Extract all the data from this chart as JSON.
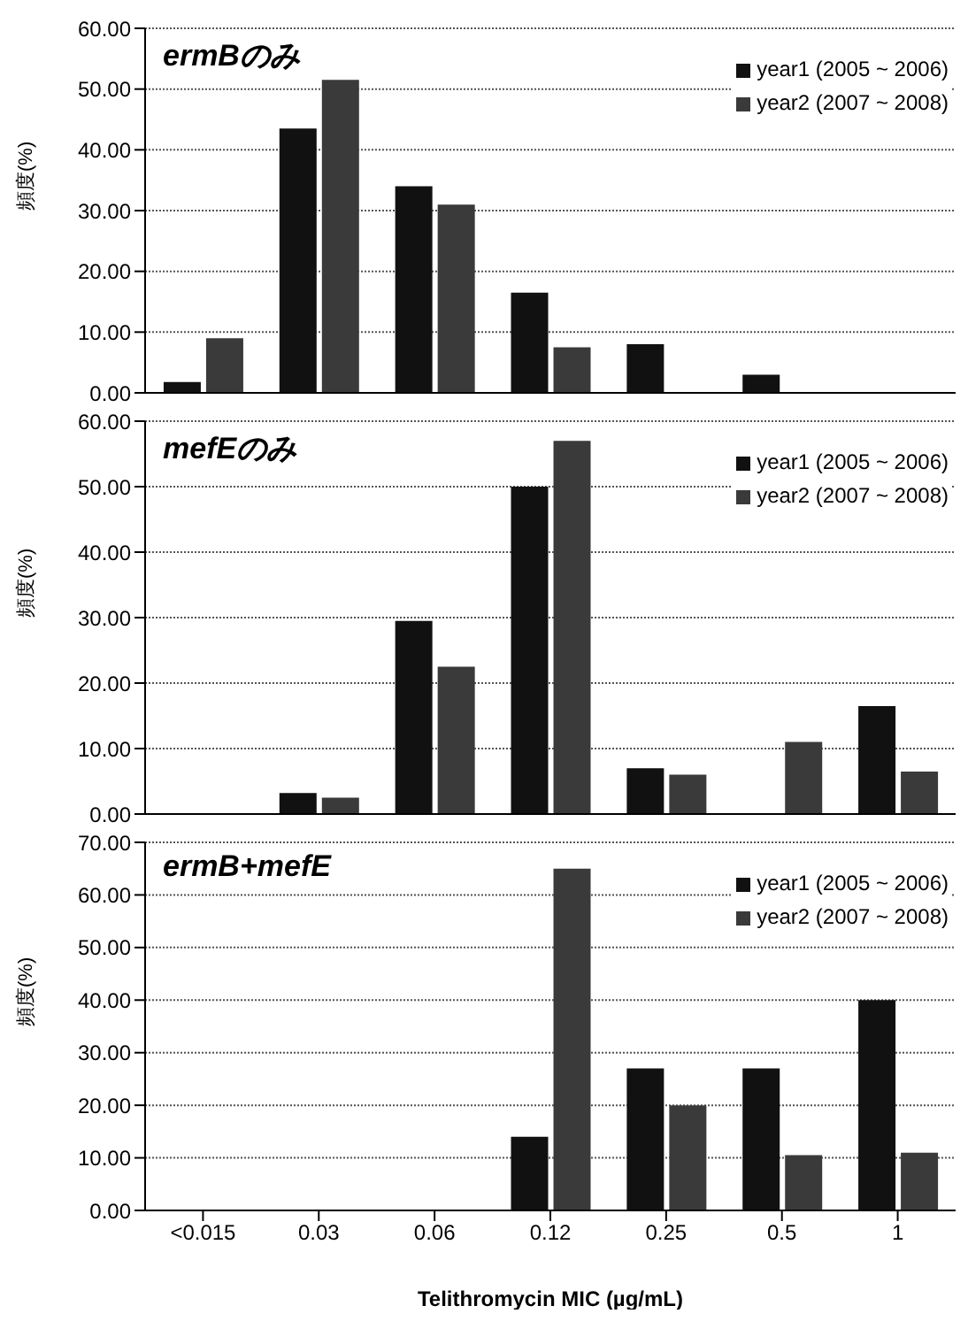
{
  "chart_data": [
    {
      "type": "bar",
      "title": "ermBのみ",
      "ylabel": "頻度(%)",
      "categories": [
        null,
        null,
        null,
        null,
        null,
        null,
        null
      ],
      "series": [
        {
          "name": "year1 (2005 ~ 2006)",
          "color": "#111111",
          "values": [
            1.8,
            43.5,
            34,
            16.5,
            8,
            3,
            null
          ]
        },
        {
          "name": "year2 (2007 ~ 2008)",
          "color": "#3a3a3a",
          "values": [
            9,
            51.5,
            31,
            7.5,
            null,
            null,
            null
          ]
        }
      ],
      "ylim": [
        0,
        60
      ],
      "yticks": [
        {
          "value": 0,
          "label": "0.00"
        },
        {
          "value": 10,
          "label": "10.00"
        },
        {
          "value": 20,
          "label": "20.00"
        },
        {
          "value": 30,
          "label": "30.00"
        },
        {
          "value": 40,
          "label": "40.00"
        },
        {
          "value": 50,
          "label": "50.00"
        },
        {
          "value": 60,
          "label": "60.00"
        }
      ],
      "grid": "y",
      "legend": "top right",
      "tick_labels": "y"
    },
    {
      "type": "bar",
      "title": "mefEのみ",
      "ylabel": "頻度(%)",
      "categories": [
        null,
        null,
        null,
        null,
        null,
        null,
        null
      ],
      "series": [
        {
          "name": "year1 (2005 ~ 2006)",
          "color": "#111111",
          "values": [
            null,
            3.2,
            29.5,
            50,
            7,
            null,
            16.5
          ]
        },
        {
          "name": "year2 (2007 ~ 2008)",
          "color": "#3a3a3a",
          "values": [
            null,
            2.5,
            22.5,
            57,
            6,
            11,
            6.5
          ]
        }
      ],
      "ylim": [
        0,
        60
      ],
      "yticks": [
        {
          "value": 0,
          "label": "0.00"
        },
        {
          "value": 10,
          "label": "10.00"
        },
        {
          "value": 20,
          "label": "20.00"
        },
        {
          "value": 30,
          "label": "30.00"
        },
        {
          "value": 40,
          "label": "40.00"
        },
        {
          "value": 50,
          "label": "50.00"
        },
        {
          "value": 60,
          "label": "60.00"
        }
      ],
      "grid": "y",
      "legend": "top right",
      "tick_labels": "y"
    },
    {
      "type": "bar",
      "title": "ermB+mefE",
      "ylabel": "頻度(%)",
      "xlabel": "Telithromycin MIC (µg/mL)",
      "categories": [
        "<0.015",
        "0.03",
        "0.06",
        "0.12",
        "0.25",
        "0.5",
        "1"
      ],
      "series": [
        {
          "name": "year1 (2005 ~ 2006)",
          "color": "#111111",
          "values": [
            null,
            null,
            null,
            14,
            27,
            27,
            40
          ]
        },
        {
          "name": "year2 (2007 ~ 2008)",
          "color": "#3a3a3a",
          "values": [
            null,
            null,
            null,
            65,
            20,
            10.5,
            11
          ]
        }
      ],
      "ylim": [
        0,
        70
      ],
      "yticks": [
        {
          "value": 0,
          "label": "0.00"
        },
        {
          "value": 10,
          "label": "10.00"
        },
        {
          "value": 20,
          "label": "20.00"
        },
        {
          "value": 30,
          "label": "30.00"
        },
        {
          "value": 40,
          "label": "40.00"
        },
        {
          "value": 50,
          "label": "50.00"
        },
        {
          "value": 60,
          "label": "60.00"
        },
        {
          "value": 70,
          "label": "70.00"
        }
      ],
      "grid": "y",
      "legend": "top right"
    }
  ]
}
